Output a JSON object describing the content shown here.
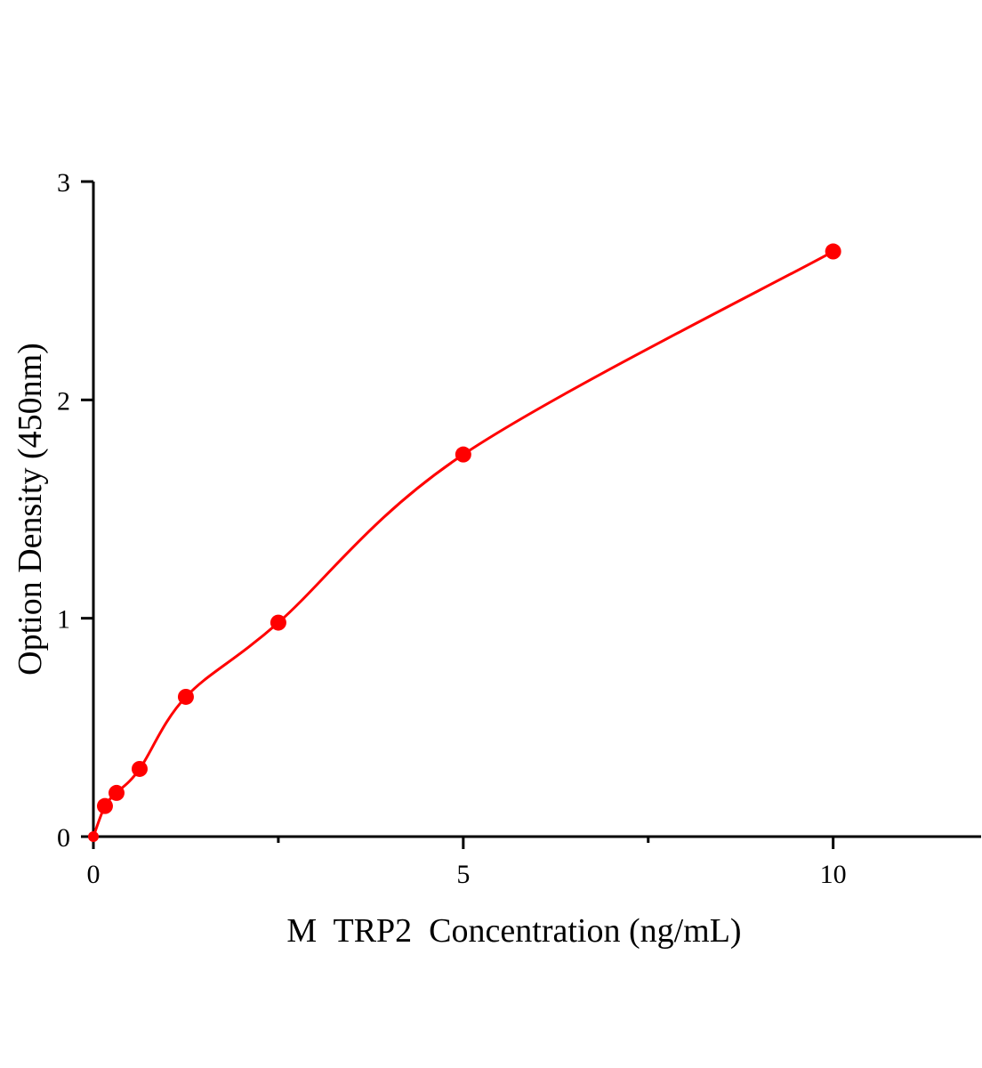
{
  "chart_data": {
    "type": "scatter",
    "title": "",
    "xlabel": "M  TRP2  Concentration (ng/mL)",
    "ylabel": "Option Density (450nm)",
    "xlim": [
      0,
      12
    ],
    "ylim": [
      0,
      3
    ],
    "x_ticks": [
      0,
      5,
      10
    ],
    "x_tick_labels": [
      "0",
      "5",
      "10"
    ],
    "x_minor_ticks": [
      2.5,
      7.5
    ],
    "y_ticks": [
      0,
      1,
      2,
      3
    ],
    "y_tick_labels": [
      "0",
      "1",
      "2",
      "3"
    ],
    "grid": false,
    "legend": "none",
    "color": "#ff0000",
    "series": [
      {
        "x": [
          0,
          0.156,
          0.3125,
          0.625,
          1.25,
          2.5,
          5,
          10
        ],
        "y": [
          0,
          0.14,
          0.2,
          0.31,
          0.64,
          0.98,
          1.75,
          2.68
        ],
        "fit_curve": true
      }
    ]
  }
}
